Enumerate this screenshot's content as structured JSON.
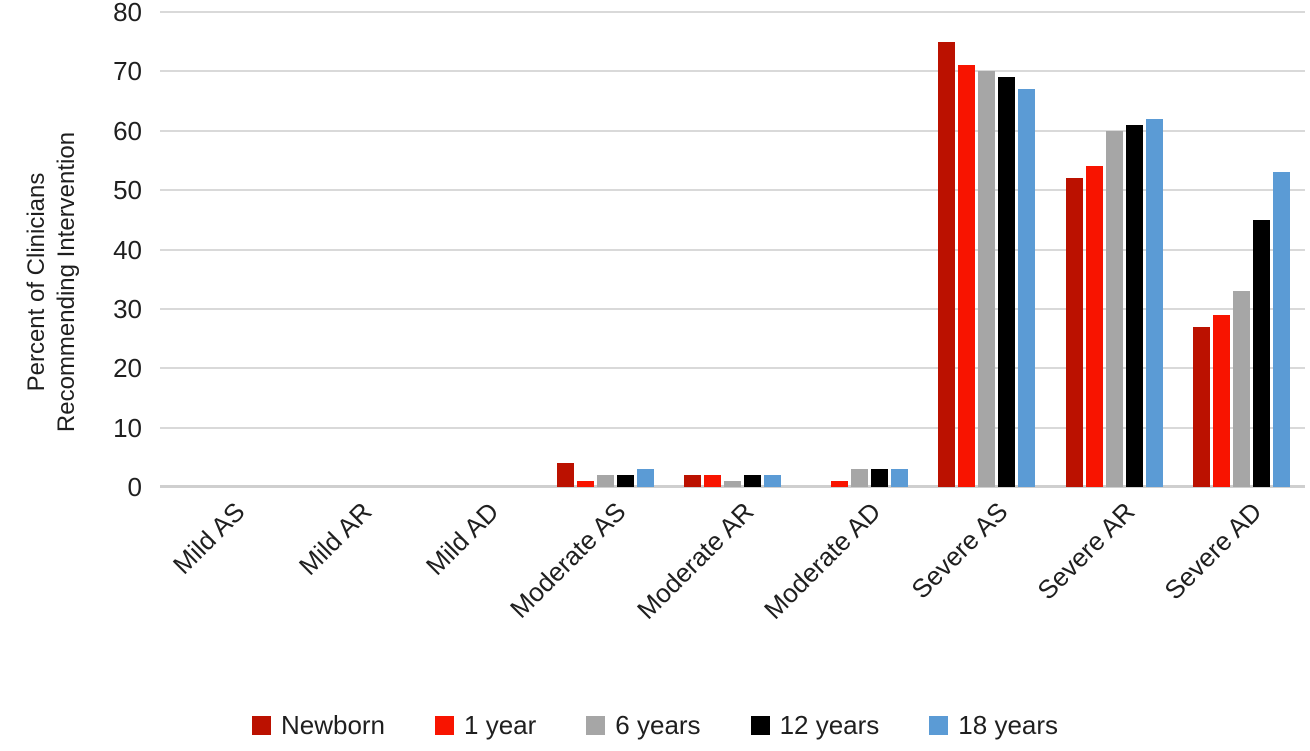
{
  "chart_data": {
    "type": "bar",
    "title": "",
    "ylabel_lines": [
      "Percent of Clinicians",
      "Recommending Intervention"
    ],
    "xlabel": "",
    "categories": [
      "Mild AS",
      "Mild AR",
      "Mild AD",
      "Moderate AS",
      "Moderate AR",
      "Moderate AD",
      "Severe AS",
      "Severe AR",
      "Severe AD"
    ],
    "series": [
      {
        "name": "Newborn",
        "color": "#bb1100",
        "values": [
          0,
          0,
          0,
          4,
          2,
          0,
          75,
          52,
          27
        ]
      },
      {
        "name": "1 year",
        "color": "#f81400",
        "values": [
          0,
          0,
          0,
          1,
          2,
          1,
          71,
          54,
          29
        ]
      },
      {
        "name": "6 years",
        "color": "#a6a6a6",
        "values": [
          0,
          0,
          0,
          2,
          1,
          3,
          70,
          60,
          33
        ]
      },
      {
        "name": "12 years",
        "color": "#000000",
        "values": [
          0,
          0,
          0,
          2,
          2,
          3,
          69,
          61,
          45
        ]
      },
      {
        "name": "18 years",
        "color": "#5b9bd5",
        "values": [
          0,
          0,
          0,
          3,
          2,
          3,
          67,
          62,
          53
        ]
      }
    ],
    "ylim": [
      0,
      80
    ],
    "y_ticks": [
      0,
      10,
      20,
      30,
      40,
      50,
      60,
      70,
      80
    ],
    "grid": true,
    "legend_position": "bottom",
    "gridline_color": "#d9d9d9",
    "text_color": "#1f1f1f"
  }
}
